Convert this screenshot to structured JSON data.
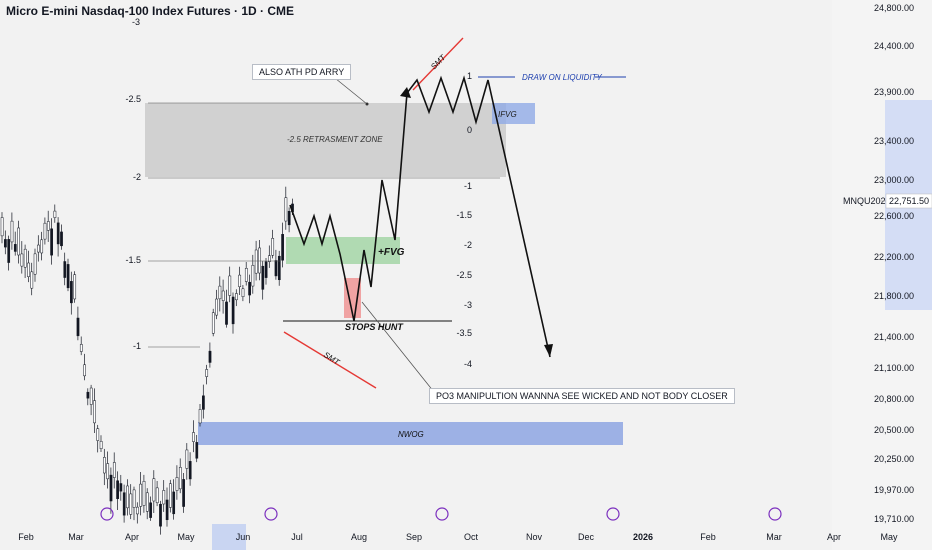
{
  "chart_data": {
    "type": "candlestick",
    "title": "Micro E-mini Nasdaq-100 Index Futures · 1D · CME",
    "symbol": "MNQU2025",
    "last_price": "22,751.50",
    "y_ticks": [
      "24,800.00",
      "24,400.00",
      "23,900.00",
      "23,400.00",
      "23,000.00",
      "22,600.00",
      "22,200.00",
      "21,800.00",
      "21,400.00",
      "21,100.00",
      "20,800.00",
      "20,500.00",
      "20,250.00",
      "19,970.00",
      "19,710.00"
    ],
    "x_ticks": [
      "Feb",
      "Mar",
      "Apr",
      "May",
      "Jun",
      "Jul",
      "Aug",
      "Sep",
      "Oct",
      "Nov",
      "Dec",
      "2026",
      "Feb",
      "Mar",
      "Apr",
      "May"
    ],
    "fib_left": [
      "-3",
      "-2.5",
      "-2",
      "-1.5",
      "-1"
    ],
    "fib_right": [
      "1",
      "0",
      "-1",
      "-1.5",
      "-2",
      "-2.5",
      "-3",
      "-3.5",
      "-4"
    ],
    "zones": {
      "retracement": "-2.5 RETRASMENT ZONE",
      "fvg": "+FVG",
      "ifvg": "IFVG",
      "nwog": "NWOG"
    },
    "annotations": {
      "ath": "ALSO ATH PD ARRY",
      "smt": "SMT",
      "draw": "DRAW ON LIQUIDITY",
      "stops": "STOPS HUNT",
      "po3": "PO3 MANIPULTION WANNNA SEE WICKED AND NOT BODY CLOSER"
    },
    "colors": {
      "bull": "#ffffff",
      "bear": "#131722",
      "zone_gray": "#cfcfcf",
      "zone_green": "#9ed09c",
      "zone_blue": "#8fa7e0",
      "zone_red": "#e8a0a5",
      "line_red": "#e53935",
      "line_blue": "#1e40af"
    }
  }
}
